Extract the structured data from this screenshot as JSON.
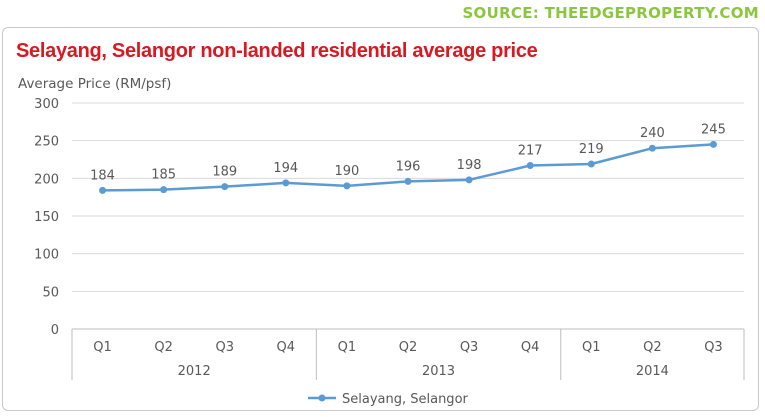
{
  "source": "SOURCE: THEEDGEPROPERTY.COM",
  "chart_data": {
    "type": "line",
    "title": "Selayang, Selangor non-landed residential average price",
    "ylabel": "Average Price (RM/psf)",
    "xlabel": "",
    "ylim": [
      0,
      300
    ],
    "yticks": [
      0,
      50,
      100,
      150,
      200,
      250,
      300
    ],
    "categories": [
      "Q1",
      "Q2",
      "Q3",
      "Q4",
      "Q1",
      "Q2",
      "Q3",
      "Q4",
      "Q1",
      "Q2",
      "Q3"
    ],
    "groups": [
      {
        "label": "2012",
        "count": 4
      },
      {
        "label": "2013",
        "count": 4
      },
      {
        "label": "2014",
        "count": 3
      }
    ],
    "series": [
      {
        "name": "Selayang, Selangor",
        "values": [
          184,
          185,
          189,
          194,
          190,
          196,
          198,
          217,
          219,
          240,
          245
        ]
      }
    ],
    "grid": true,
    "legend": "bottom",
    "colors": {
      "line": "#5b9bd5",
      "grid": "#d9d9d9",
      "axis": "#bfbfbf"
    }
  }
}
